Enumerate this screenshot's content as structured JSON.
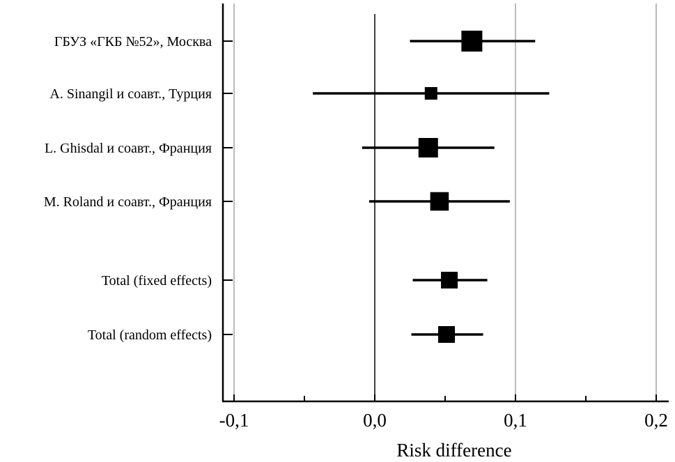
{
  "chart_data": {
    "type": "forest",
    "xlabel": "Risk difference",
    "xlim": [
      -0.11,
      0.21
    ],
    "xticks": [
      -0.1,
      0.0,
      0.1,
      0.2
    ],
    "xtick_labels": [
      "-0,1",
      "0,0",
      "0,1",
      "0,2"
    ],
    "minor_xticks": [
      -0.05,
      0.05,
      0.15
    ],
    "reference_line": 0.0,
    "grid": "vertical at major ticks",
    "rows": [
      {
        "label": "ГБУЗ «ГКБ №52», Москва",
        "estimate": 0.069,
        "ci_low": 0.025,
        "ci_high": 0.114,
        "relative_weight": 1.0
      },
      {
        "label": "A. Sinangil и соавт., Турция",
        "estimate": 0.04,
        "ci_low": -0.044,
        "ci_high": 0.124,
        "relative_weight": 0.4
      },
      {
        "label": "L. Ghisdal и соавт., Франция",
        "estimate": 0.038,
        "ci_low": -0.009,
        "ci_high": 0.085,
        "relative_weight": 0.9
      },
      {
        "label": "M. Roland и соавт., Франция",
        "estimate": 0.046,
        "ci_low": -0.004,
        "ci_high": 0.096,
        "relative_weight": 0.83
      },
      {
        "label": "Total (fixed effects)",
        "estimate": 0.053,
        "ci_low": 0.027,
        "ci_high": 0.08,
        "relative_weight": 0.7
      },
      {
        "label": "Total (random effects)",
        "estimate": 0.051,
        "ci_low": 0.026,
        "ci_high": 0.077,
        "relative_weight": 0.7
      }
    ]
  }
}
